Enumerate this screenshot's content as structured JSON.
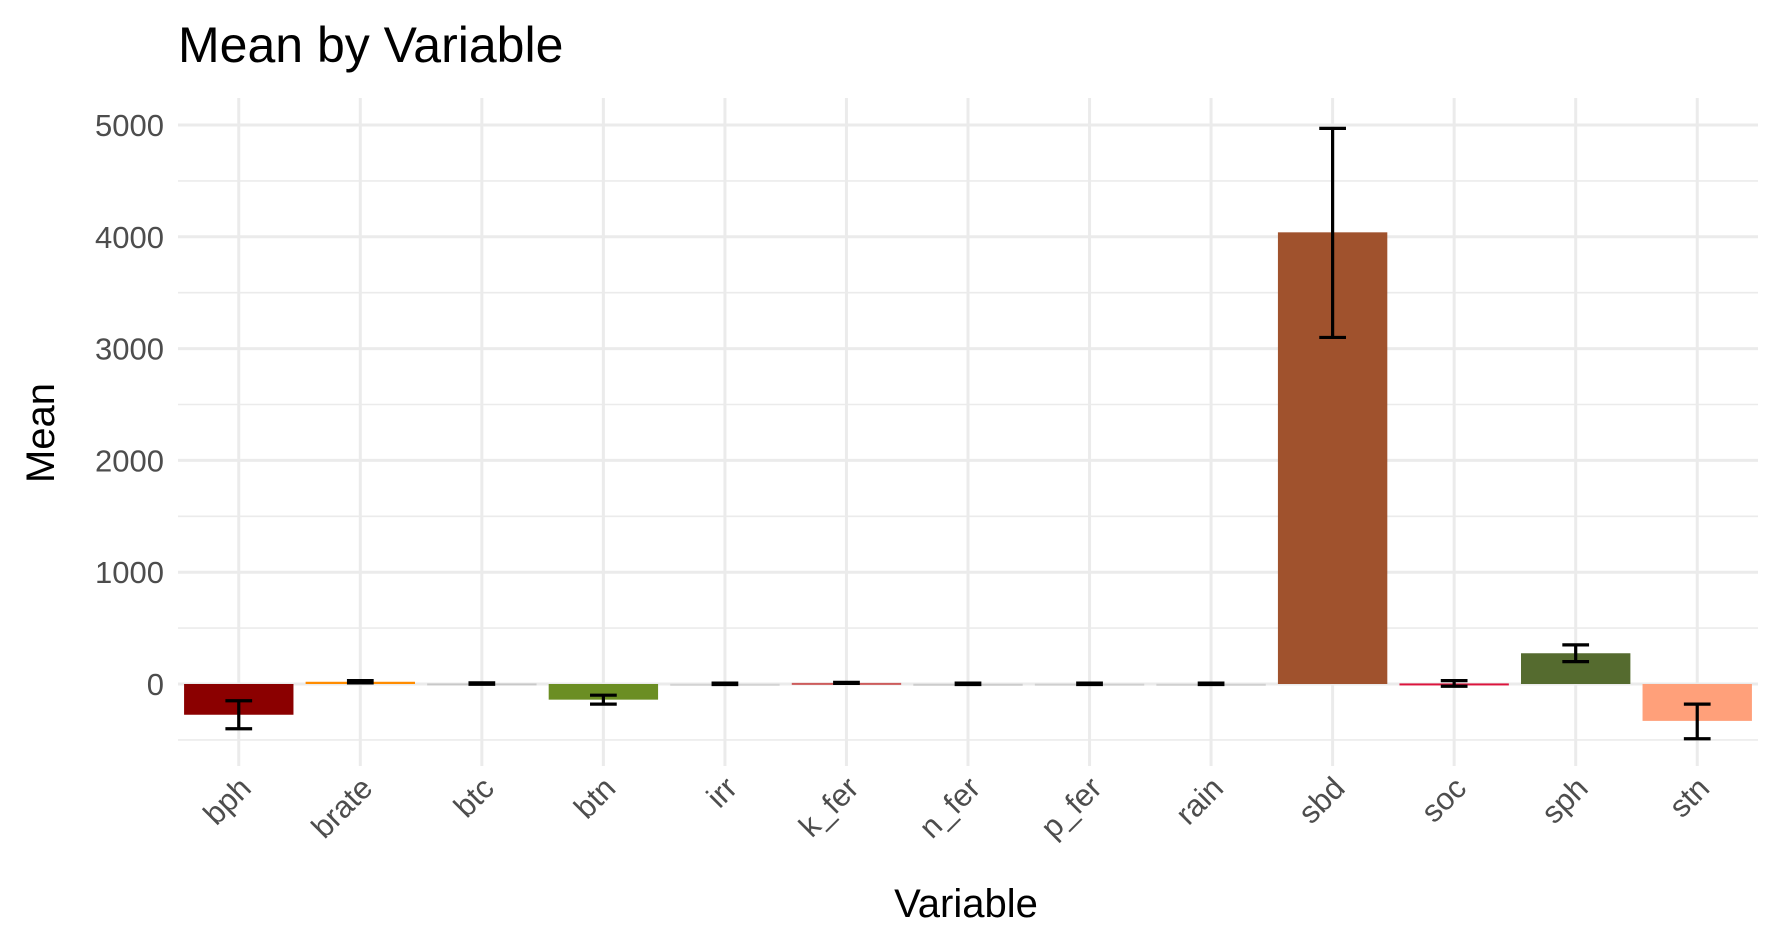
{
  "chart_data": {
    "type": "bar",
    "title": "Mean by Variable",
    "xlabel": "Variable",
    "ylabel": "Mean",
    "categories": [
      "bph",
      "brate",
      "btc",
      "btn",
      "irr",
      "k_fer",
      "n_fer",
      "p_fer",
      "rain",
      "sbd",
      "soc",
      "sph",
      "stn"
    ],
    "values": [
      -275,
      20,
      5,
      -140,
      2,
      10,
      2,
      3,
      2,
      4040,
      5,
      275,
      -330
    ],
    "error_low": [
      -400,
      10,
      -3,
      -180,
      -5,
      5,
      -5,
      -5,
      -5,
      3100,
      -20,
      200,
      -490
    ],
    "error_high": [
      -150,
      30,
      10,
      -100,
      8,
      15,
      8,
      8,
      8,
      4970,
      30,
      350,
      -180
    ],
    "colors": [
      "#8b0000",
      "#ff8c00",
      "#c8c8c8",
      "#6b8e23",
      "#d3d3d3",
      "#cd5c5c",
      "#cccccc",
      "#cfcfcf",
      "#d0d0d0",
      "#a0522d",
      "#dc143c",
      "#556b2f",
      "#ffa07a"
    ],
    "ylim": [
      -500,
      5000
    ],
    "yticks": [
      0,
      1000,
      2000,
      3000,
      4000,
      5000
    ],
    "grid": true,
    "legend": "none"
  }
}
